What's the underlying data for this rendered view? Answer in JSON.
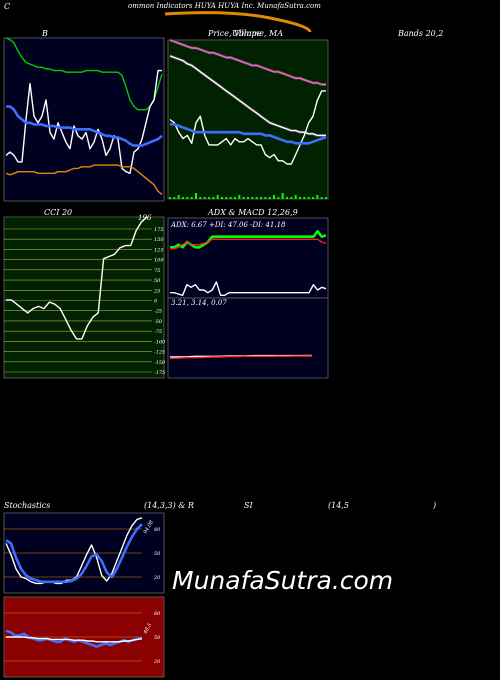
{
  "header": {
    "title": "ommon Indicators HUYA HUYA Inc. MunafaSutra.com",
    "lead_letter": "C"
  },
  "panels": {
    "bollinger": {
      "label": "B",
      "label2": "Bands 20,2"
    },
    "price_ma": {
      "label": "Price, Volume, MA",
      "label_overlap": "Ullmpe"
    },
    "cci": {
      "label": "CCI 20",
      "value_label": "196"
    },
    "adx_macd": {
      "label": "ADX & MACD 12,26,9",
      "adx_text": "ADX: 6.67 +DI: 47.06 -DI: 41.18",
      "macd_text": "3.21, 3.14, 0.07"
    },
    "stoch": {
      "label": "Stochastics",
      "params": "(14,3,3) & R",
      "rsi_label": "SI",
      "rsi_params": "(14,5",
      "paren": ")",
      "stoch_value": "94.08",
      "rsi_value": "48.5"
    }
  },
  "watermark": "MunafaSutra.com",
  "colors": {
    "panel_bg": "#000020",
    "green_bg": "#002200",
    "red_bg": "#8b0000",
    "blue": "#3a6fff",
    "white": "#ffffff",
    "green": "#00cc00",
    "orange": "#e08a00",
    "pink": "#ff66cc",
    "bright_green": "#00ff00",
    "cci_grid": "#b5a642",
    "red": "#ff2020"
  },
  "chart_data": [
    {
      "type": "line",
      "name": "bollinger",
      "ylim": [
        0,
        100
      ],
      "series": [
        {
          "name": "upper",
          "color": "green",
          "values": [
            100,
            99,
            97,
            92,
            88,
            85,
            84,
            83,
            82,
            82,
            81,
            81,
            80,
            80,
            80,
            79,
            79,
            79,
            79,
            79,
            80,
            80,
            80,
            80,
            79,
            79,
            79,
            79,
            79,
            77,
            70,
            62,
            58,
            56,
            56,
            56,
            58,
            62,
            70,
            78
          ]
        },
        {
          "name": "price",
          "color": "white",
          "values": [
            28,
            30,
            28,
            24,
            24,
            50,
            72,
            52,
            48,
            52,
            62,
            42,
            38,
            48,
            42,
            36,
            32,
            46,
            40,
            38,
            42,
            32,
            36,
            44,
            38,
            28,
            32,
            40,
            38,
            20,
            18,
            17,
            30,
            32,
            38,
            48,
            58,
            62,
            80,
            80
          ]
        },
        {
          "name": "middle",
          "color": "blue",
          "values": [
            58,
            58,
            56,
            52,
            50,
            48,
            48,
            47,
            47,
            47,
            46,
            46,
            46,
            45,
            45,
            45,
            45,
            44,
            44,
            44,
            44,
            44,
            43,
            42,
            41,
            40,
            40,
            39,
            39,
            38,
            37,
            35,
            34,
            34,
            34,
            35,
            36,
            37,
            38,
            40
          ]
        },
        {
          "name": "lower",
          "color": "orange",
          "values": [
            17,
            16,
            17,
            18,
            18,
            18,
            18,
            18,
            17,
            17,
            17,
            17,
            17,
            18,
            18,
            18,
            19,
            20,
            20,
            21,
            21,
            21,
            22,
            22,
            22,
            22,
            22,
            22,
            22,
            21,
            21,
            21,
            20,
            18,
            16,
            14,
            12,
            10,
            6,
            4
          ]
        }
      ]
    },
    {
      "type": "line",
      "name": "price_ma",
      "ylim": [
        0,
        100
      ],
      "series": [
        {
          "name": "ma_long",
          "color": "pink",
          "values": [
            100,
            99,
            98,
            97,
            96,
            95,
            95,
            94,
            93,
            92,
            92,
            91,
            90,
            89,
            89,
            88,
            87,
            86,
            85,
            84,
            84,
            83,
            82,
            81,
            80,
            80,
            79,
            78,
            77,
            76,
            76,
            75,
            74,
            73,
            73,
            72,
            72
          ]
        },
        {
          "name": "ma_mid",
          "color": "white",
          "values": [
            90,
            89,
            88,
            87,
            85,
            84,
            82,
            80,
            78,
            76,
            74,
            72,
            70,
            68,
            66,
            64,
            62,
            60,
            58,
            56,
            54,
            52,
            50,
            48,
            47,
            46,
            45,
            44,
            43,
            43,
            42,
            42,
            41,
            41,
            40,
            40,
            40
          ]
        },
        {
          "name": "price",
          "color": "white",
          "values": [
            50,
            48,
            42,
            38,
            40,
            35,
            48,
            52,
            40,
            34,
            34,
            34,
            36,
            38,
            34,
            38,
            36,
            36,
            38,
            36,
            34,
            34,
            28,
            26,
            28,
            24,
            24,
            22,
            22,
            28,
            34,
            40,
            48,
            52,
            62,
            68,
            68
          ]
        },
        {
          "name": "ma_short",
          "color": "blue",
          "values": [
            47,
            47,
            46,
            45,
            44,
            43,
            42,
            42,
            42,
            42,
            42,
            42,
            42,
            42,
            42,
            42,
            42,
            41,
            41,
            41,
            41,
            41,
            40,
            40,
            39,
            38,
            37,
            36,
            36,
            35,
            35,
            35,
            35,
            36,
            37,
            38,
            39
          ]
        },
        {
          "name": "volume",
          "color": "bright_green",
          "values": [
            1,
            1,
            2,
            1,
            1,
            1,
            3,
            1,
            1,
            1,
            1,
            2,
            1,
            1,
            1,
            1,
            2,
            1,
            1,
            1,
            1,
            1,
            1,
            1,
            2,
            1,
            3,
            1,
            1,
            2,
            1,
            1,
            1,
            1,
            2,
            1,
            1
          ]
        }
      ]
    },
    {
      "type": "line",
      "name": "cci",
      "ylim": [
        -175,
        196
      ],
      "y_ticks": [
        "175",
        "150",
        "125",
        "100",
        "75",
        "50",
        "25",
        "0",
        "-25",
        "-50",
        "-75",
        "-100",
        "-125",
        "-150",
        "-175"
      ],
      "series": [
        {
          "name": "cci",
          "color": "white",
          "values": [
            5,
            5,
            -5,
            -15,
            -25,
            -15,
            -10,
            -15,
            0,
            -5,
            -15,
            -40,
            -65,
            -85,
            -85,
            -55,
            -35,
            -25,
            100,
            105,
            110,
            125,
            130,
            130,
            165,
            185,
            196
          ]
        }
      ]
    },
    {
      "type": "line",
      "name": "adx",
      "ylim": [
        0,
        60
      ],
      "series": [
        {
          "name": "plus_di",
          "color": "bright_green",
          "values": [
            38,
            38,
            40,
            38,
            42,
            40,
            38,
            38,
            40,
            42,
            46,
            46,
            46,
            46,
            46,
            46,
            46,
            46,
            46,
            46,
            46,
            46,
            46,
            46,
            46,
            46,
            46,
            46,
            46,
            46,
            46,
            46,
            46,
            46,
            46,
            50,
            46,
            47
          ]
        },
        {
          "name": "minus_di",
          "color": "red",
          "values": [
            37,
            37,
            38,
            40,
            42,
            40,
            40,
            40,
            41,
            42,
            44,
            44,
            44,
            44,
            44,
            44,
            44,
            44,
            44,
            44,
            44,
            44,
            44,
            44,
            44,
            44,
            44,
            44,
            44,
            44,
            44,
            44,
            44,
            44,
            44,
            44,
            42,
            41
          ]
        },
        {
          "name": "adx",
          "color": "white",
          "values": [
            4,
            4,
            3,
            2,
            10,
            8,
            10,
            6,
            6,
            4,
            6,
            12,
            2,
            2,
            4,
            4,
            4,
            4,
            4,
            4,
            4,
            4,
            4,
            4,
            4,
            4,
            4,
            4,
            4,
            4,
            4,
            4,
            4,
            4,
            10,
            6,
            8,
            7
          ]
        }
      ]
    },
    {
      "type": "line",
      "name": "macd",
      "ylim": [
        0,
        10
      ],
      "series": [
        {
          "name": "macd",
          "color": "white",
          "values": [
            3.0,
            3.0,
            3.0,
            3.1,
            3.1,
            3.1,
            3.1,
            3.15,
            3.15,
            3.15,
            3.2,
            3.2,
            3.2,
            3.2,
            3.2,
            3.2,
            3.2,
            3.21
          ]
        },
        {
          "name": "signal",
          "color": "red",
          "values": [
            2.8,
            2.85,
            2.9,
            2.9,
            2.95,
            3.0,
            3.0,
            3.05,
            3.05,
            3.1,
            3.1,
            3.1,
            3.1,
            3.12,
            3.12,
            3.13,
            3.13,
            3.14
          ]
        }
      ]
    },
    {
      "type": "line",
      "name": "stochastics",
      "ylim": [
        0,
        100
      ],
      "y_ticks": [
        "80",
        "50",
        "20"
      ],
      "series": [
        {
          "name": "k",
          "color": "white",
          "values": [
            62,
            48,
            30,
            20,
            18,
            14,
            12,
            12,
            14,
            14,
            12,
            12,
            16,
            16,
            20,
            34,
            48,
            60,
            44,
            22,
            15,
            24,
            40,
            56,
            72,
            84,
            92,
            94
          ]
        },
        {
          "name": "d",
          "color": "blue",
          "values": [
            66,
            62,
            44,
            30,
            22,
            18,
            16,
            14,
            14,
            14,
            14,
            14,
            14,
            15,
            18,
            24,
            34,
            46,
            48,
            40,
            26,
            20,
            30,
            44,
            58,
            70,
            80,
            86
          ]
        }
      ]
    },
    {
      "type": "line",
      "name": "rsi",
      "ylim": [
        0,
        100
      ],
      "y_ticks": [
        "80",
        "50",
        "20"
      ],
      "series": [
        {
          "name": "rsi",
          "color": "blue",
          "values": [
            58,
            56,
            52,
            52,
            54,
            50,
            48,
            46,
            46,
            48,
            46,
            44,
            44,
            48,
            46,
            44,
            46,
            44,
            42,
            40,
            38,
            40,
            42,
            40,
            42,
            44,
            46,
            44,
            46,
            48,
            48
          ]
        },
        {
          "name": "rsi_smooth",
          "color": "white",
          "values": [
            50,
            50,
            50,
            50,
            50,
            49,
            49,
            48,
            48,
            48,
            47,
            47,
            47,
            47,
            47,
            46,
            46,
            46,
            45,
            45,
            44,
            44,
            44,
            44,
            44,
            44,
            45,
            45,
            46,
            47,
            48
          ]
        }
      ]
    }
  ]
}
